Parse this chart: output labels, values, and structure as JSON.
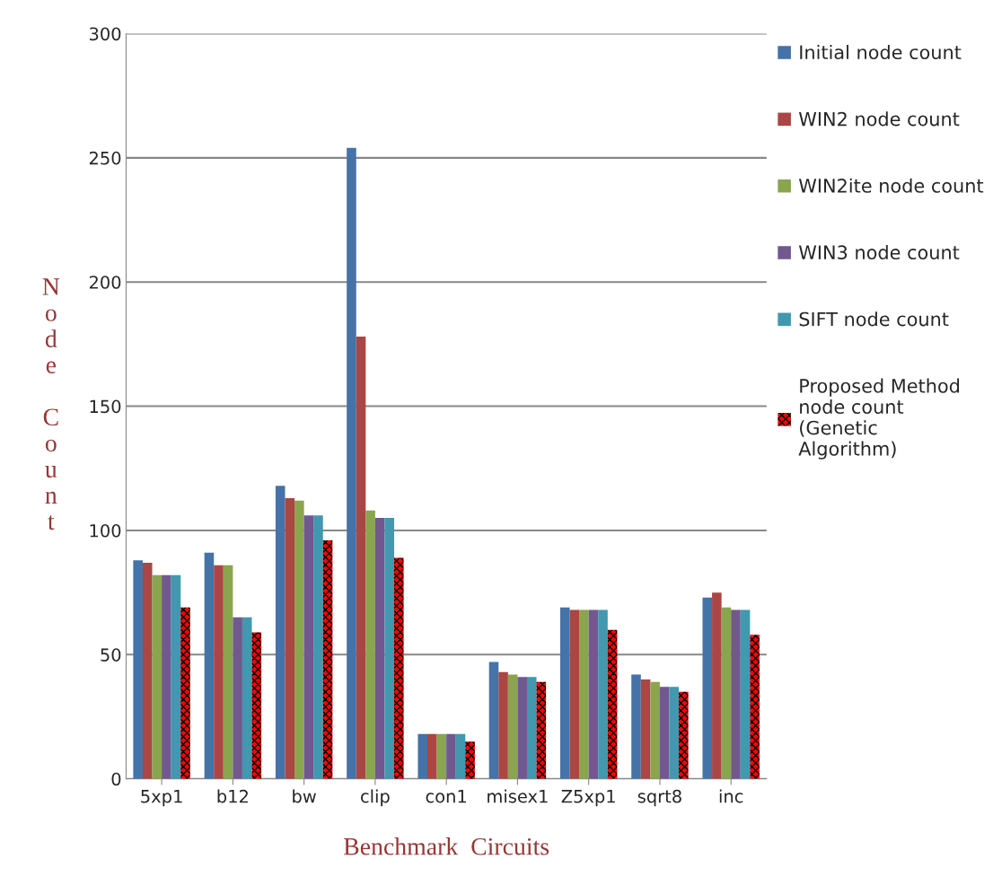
{
  "chart_data": {
    "type": "bar",
    "xlabel": "Benchmark  Circuits",
    "ylabel": "Node Count",
    "categories": [
      "5xp1",
      "b12",
      "bw",
      "clip",
      "con1",
      "misex1",
      "Z5xp1",
      "sqrt8",
      "inc"
    ],
    "series": [
      {
        "name": "Initial node count",
        "color": "#4572a7",
        "values": [
          88,
          91,
          118,
          254,
          18,
          47,
          69,
          42,
          73
        ]
      },
      {
        "name": "WIN2 node count",
        "color": "#aa4643",
        "values": [
          87,
          86,
          113,
          178,
          18,
          43,
          68,
          40,
          75
        ]
      },
      {
        "name": "WIN2ite node count",
        "color": "#89a54e",
        "values": [
          82,
          86,
          112,
          108,
          18,
          42,
          68,
          39,
          69
        ]
      },
      {
        "name": "WIN3 node count",
        "color": "#71588f",
        "values": [
          82,
          65,
          106,
          105,
          18,
          41,
          68,
          37,
          68
        ]
      },
      {
        "name": "SIFT node count",
        "color": "#4198af",
        "values": [
          82,
          65,
          106,
          105,
          18,
          41,
          68,
          37,
          68
        ]
      },
      {
        "name": "Proposed Method node count (Genetic Algorithm)",
        "color": "#ff0000",
        "values": [
          69,
          59,
          96,
          89,
          15,
          39,
          60,
          35,
          58
        ]
      }
    ],
    "ylim": [
      0,
      300
    ],
    "yticks": [
      0,
      50,
      100,
      150,
      200,
      250,
      300
    ],
    "grid": "y",
    "legend": "right"
  }
}
